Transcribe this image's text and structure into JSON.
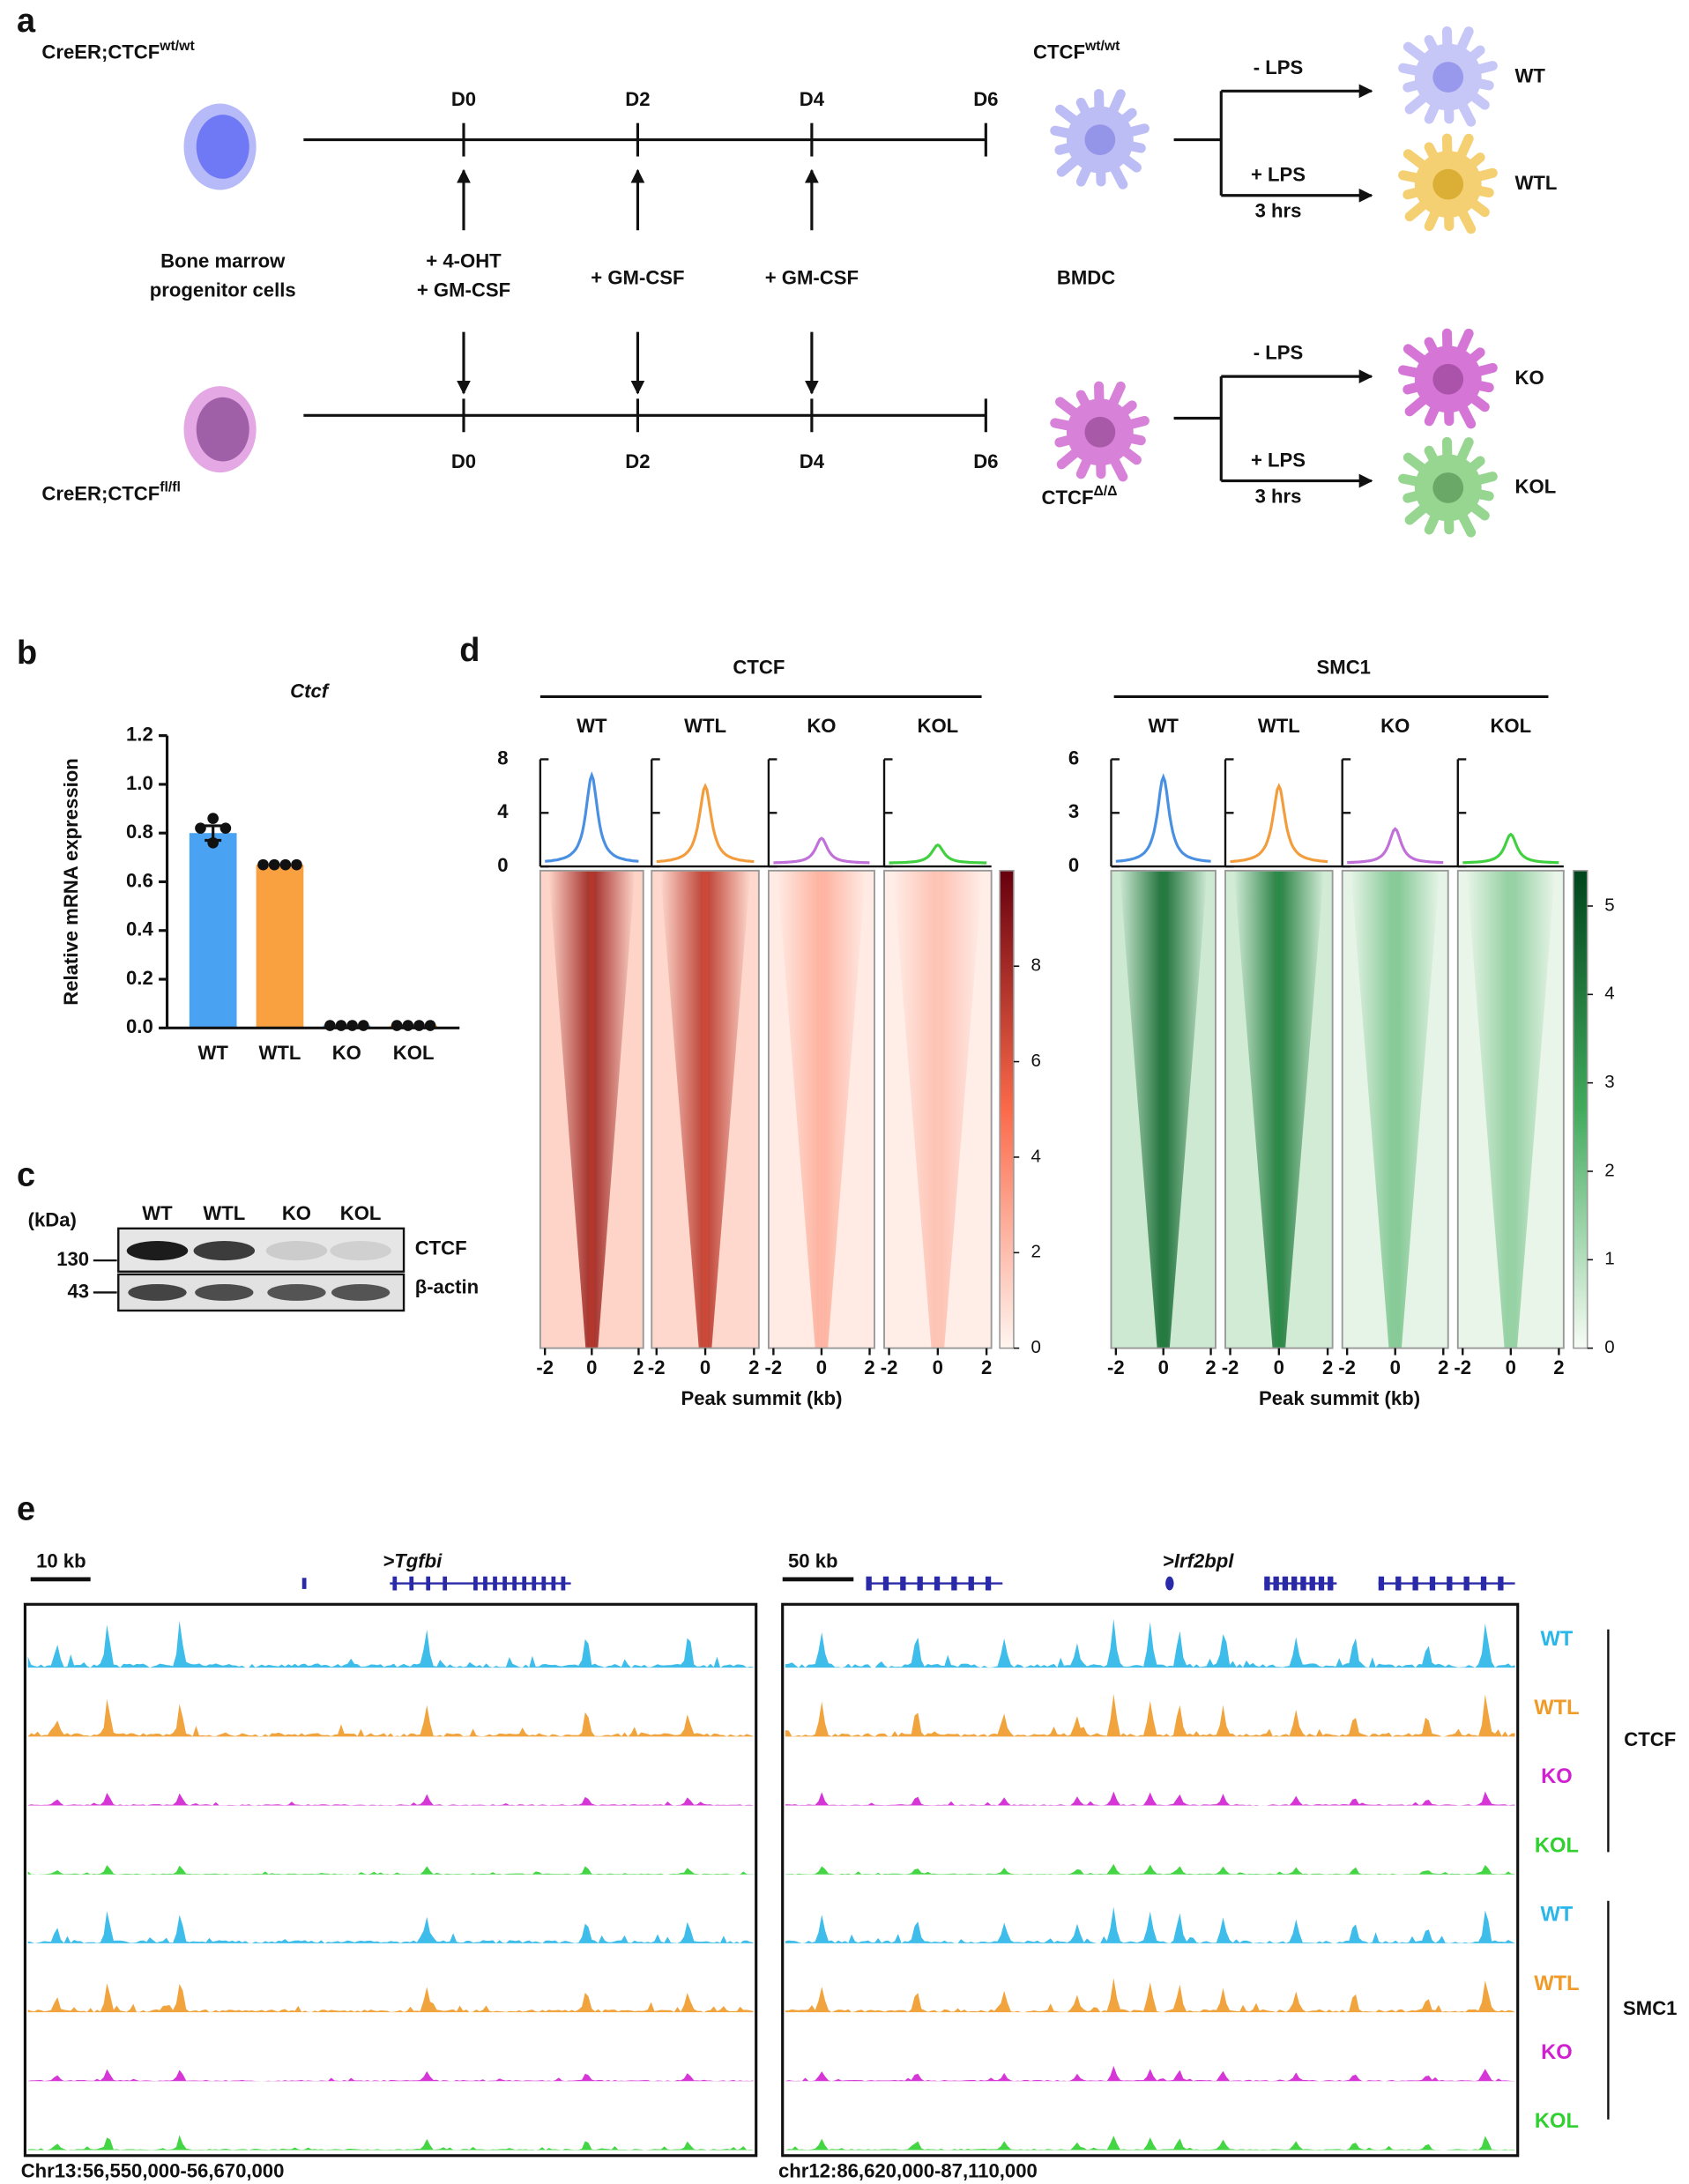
{
  "panel_a": {
    "label": "a",
    "top_strain": {
      "text": "CreER;CTCF",
      "sup": "wt/wt"
    },
    "bottom_strain": {
      "text": "CreER;CTCF",
      "sup": "fl/fl"
    },
    "days": [
      "D0",
      "D2",
      "D4",
      "D6"
    ],
    "progenitor": [
      "Bone marrow",
      "progenitor cells"
    ],
    "treatments": [
      [
        "+ 4-OHT",
        "+ GM-CSF"
      ],
      [
        "+ GM-CSF"
      ],
      [
        "+ GM-CSF"
      ]
    ],
    "bmdc": "BMDC",
    "top_genotype": {
      "text": "CTCF",
      "sup": "wt/wt"
    },
    "bottom_genotype": {
      "text": "CTCF",
      "sup": "Δ/Δ"
    },
    "minus_lps": "- LPS",
    "plus_lps": "+ LPS",
    "duration": "3 hrs",
    "outcomes": [
      "WT",
      "WTL",
      "KO",
      "KOL"
    ]
  },
  "panel_b": {
    "label": "b",
    "chart_data": {
      "type": "bar",
      "title": "Ctcf",
      "ylabel": "Relative mRNA expression",
      "categories": [
        "WT",
        "WTL",
        "KO",
        "KOL"
      ],
      "values": [
        0.8,
        0.67,
        0.01,
        0.01
      ],
      "errors": [
        0.03,
        0,
        0,
        0
      ],
      "points": [
        [
          0.86,
          0.82,
          0.82,
          0.76
        ],
        [
          0.67,
          0.67,
          0.67,
          0.67
        ],
        [
          0.01,
          0.01,
          0.01,
          0.01
        ],
        [
          0.01,
          0.01,
          0.01,
          0.01
        ]
      ],
      "colors": [
        "#4aa3f2",
        "#f9a040",
        "#4aa3f2",
        "#f9a040"
      ],
      "ylim": [
        0,
        1.2
      ],
      "yticks": [
        {
          "value": 0,
          "label": "0.0"
        },
        {
          "value": 0.2,
          "label": "0.2"
        },
        {
          "value": 0.4,
          "label": "0.4"
        },
        {
          "value": 0.6,
          "label": "0.6"
        },
        {
          "value": 0.8,
          "label": "0.8"
        },
        {
          "value": 1,
          "label": "1.0"
        },
        {
          "value": 1.2,
          "label": "1.2"
        }
      ]
    }
  },
  "panel_c": {
    "label": "c",
    "unit": "(kDa)",
    "lanes": [
      "WT",
      "WTL",
      "KO",
      "KOL"
    ],
    "markers": [
      130,
      43
    ],
    "proteins": [
      "CTCF",
      "β-actin"
    ]
  },
  "panel_d": {
    "label": "d",
    "xlabel": "Peak summit (kb)",
    "samples": [
      "WT",
      "WTL",
      "KO",
      "KOL"
    ],
    "xlim": [
      -2.2,
      2.2
    ],
    "xticks": [
      -2,
      0,
      2
    ],
    "line_colors": [
      "#4a90e2",
      "#f39c3c",
      "#c070d8",
      "#40d040"
    ],
    "groups": [
      {
        "name": "CTCF",
        "profile_ylim": [
          0,
          8
        ],
        "profile_yticks": [
          0,
          4,
          8
        ],
        "peaks": [
          6.8,
          6.0,
          2.1,
          1.6
        ],
        "colorbar_lim": [
          0,
          10
        ],
        "colorbar_ticks": [
          0,
          2,
          4,
          6,
          8
        ],
        "colormap": "reds"
      },
      {
        "name": "SMC1",
        "profile_ylim": [
          0,
          6
        ],
        "profile_yticks": [
          0,
          3,
          6
        ],
        "peaks": [
          5.0,
          4.5,
          2.1,
          1.8
        ],
        "colorbar_lim": [
          0,
          5.4
        ],
        "colorbar_ticks": [
          0,
          1,
          2,
          3,
          4,
          5
        ],
        "colormap": "greens"
      }
    ]
  },
  "panel_e": {
    "label": "e",
    "regions": [
      {
        "scale": "10 kb",
        "gene": ">Tgfbi",
        "coords": "Chr13:56,550,000-56,670,000"
      },
      {
        "scale": "50 kb",
        "gene": ">Irf2bpl",
        "coords": "chr12:86,620,000-87,110,000"
      }
    ],
    "tracks": [
      "WT",
      "WTL",
      "KO",
      "KOL",
      "WT",
      "WTL",
      "KO",
      "KOL"
    ],
    "track_colors": [
      "#29b6e8",
      "#f09a28",
      "#d020d0",
      "#30d030",
      "#29b6e8",
      "#f09a28",
      "#d020d0",
      "#30d030"
    ],
    "groups": [
      "CTCF",
      "SMC1"
    ]
  }
}
